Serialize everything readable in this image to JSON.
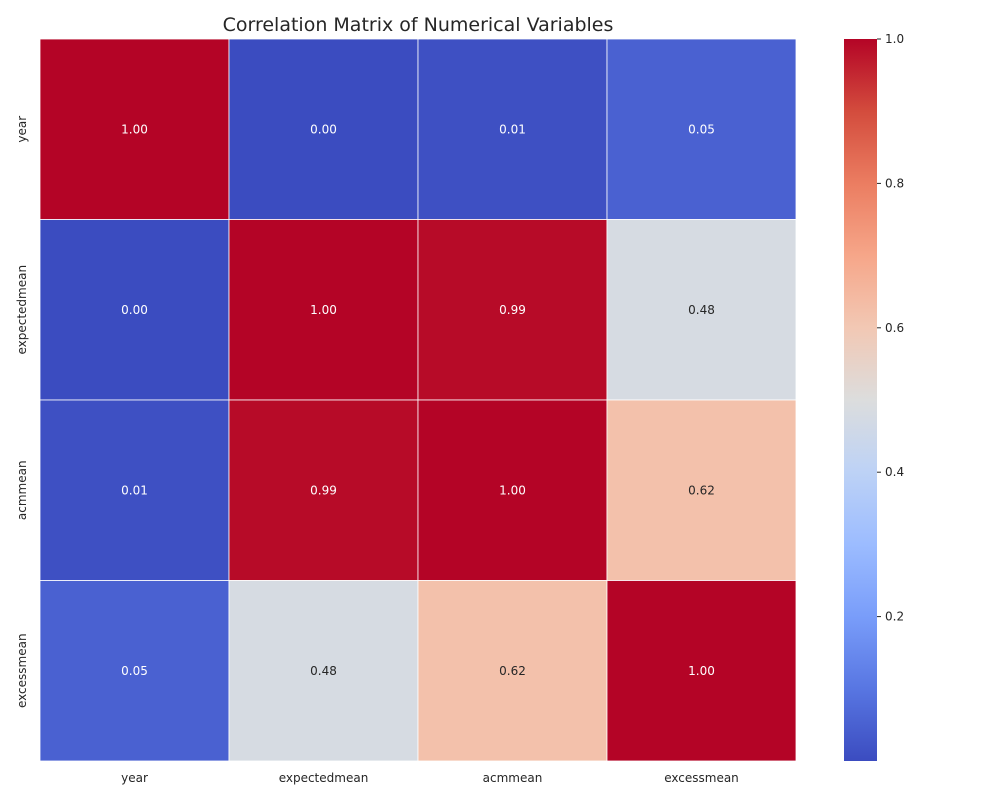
{
  "chart_data": {
    "type": "heatmap",
    "title": "Correlation Matrix of Numerical Variables",
    "xlabel": "",
    "ylabel": "",
    "x_categories": [
      "year",
      "expectedmean",
      "acmmean",
      "excessmean"
    ],
    "y_categories": [
      "year",
      "expectedmean",
      "acmmean",
      "excessmean"
    ],
    "values": [
      [
        1.0,
        0.0,
        0.01,
        0.05
      ],
      [
        0.0,
        1.0,
        0.99,
        0.48
      ],
      [
        0.01,
        0.99,
        1.0,
        0.62
      ],
      [
        0.05,
        0.48,
        0.62,
        1.0
      ]
    ],
    "cell_labels": [
      [
        "1.00",
        "0.00",
        "0.01",
        "0.05"
      ],
      [
        "0.00",
        "1.00",
        "0.99",
        "0.48"
      ],
      [
        "0.01",
        "0.99",
        "1.00",
        "0.62"
      ],
      [
        "0.05",
        "0.48",
        "0.62",
        "1.00"
      ]
    ],
    "colormap": "coolwarm",
    "colorbar": {
      "min": 0.0,
      "max": 1.0,
      "ticks": [
        0.2,
        0.4,
        0.6,
        0.8,
        1.0
      ],
      "tick_labels": [
        "0.2",
        "0.4",
        "0.6",
        "0.8",
        "1.0"
      ]
    },
    "grid": false,
    "annotations_color_light": "#ffffff",
    "annotations_color_dark": "#262626"
  }
}
